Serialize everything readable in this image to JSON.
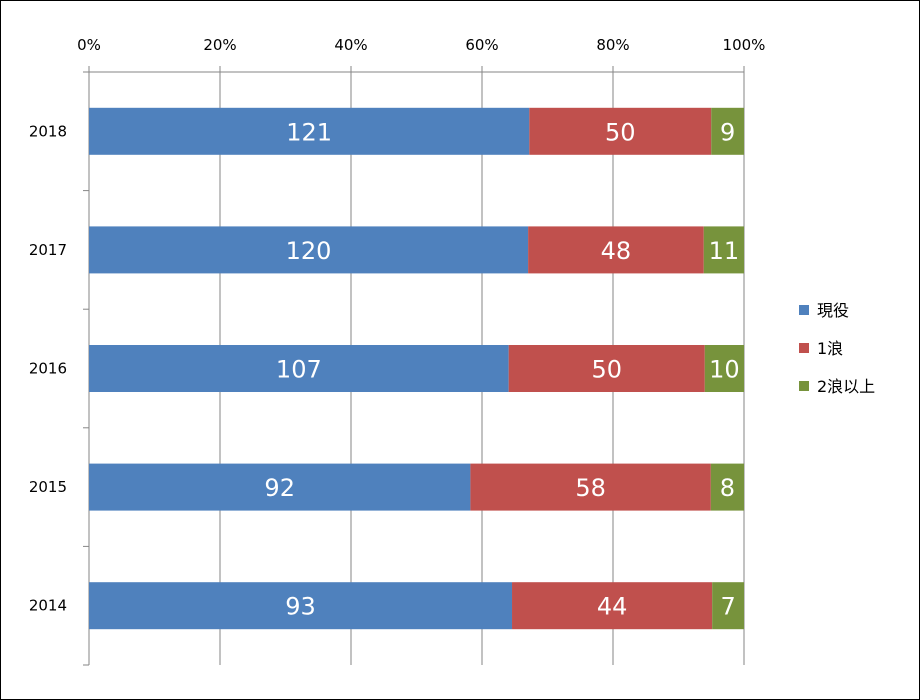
{
  "chart_data": {
    "type": "bar",
    "orientation": "horizontal",
    "stacked": "percent",
    "categories": [
      "2018",
      "2017",
      "2016",
      "2015",
      "2014"
    ],
    "series": [
      {
        "name": "現役",
        "values": [
          121,
          120,
          107,
          92,
          93
        ],
        "color": "#4F81BD"
      },
      {
        "name": "1浪",
        "values": [
          50,
          48,
          50,
          58,
          44
        ],
        "color": "#C0504D"
      },
      {
        "name": "2浪以上",
        "values": [
          9,
          11,
          10,
          8,
          7
        ],
        "color": "#77933C"
      }
    ],
    "x_ticks": [
      "0%",
      "20%",
      "40%",
      "60%",
      "80%",
      "100%"
    ],
    "xlim": [
      0,
      100
    ],
    "x_axis_position": "top",
    "grid": true,
    "legend_position": "right",
    "data_labels": true
  }
}
